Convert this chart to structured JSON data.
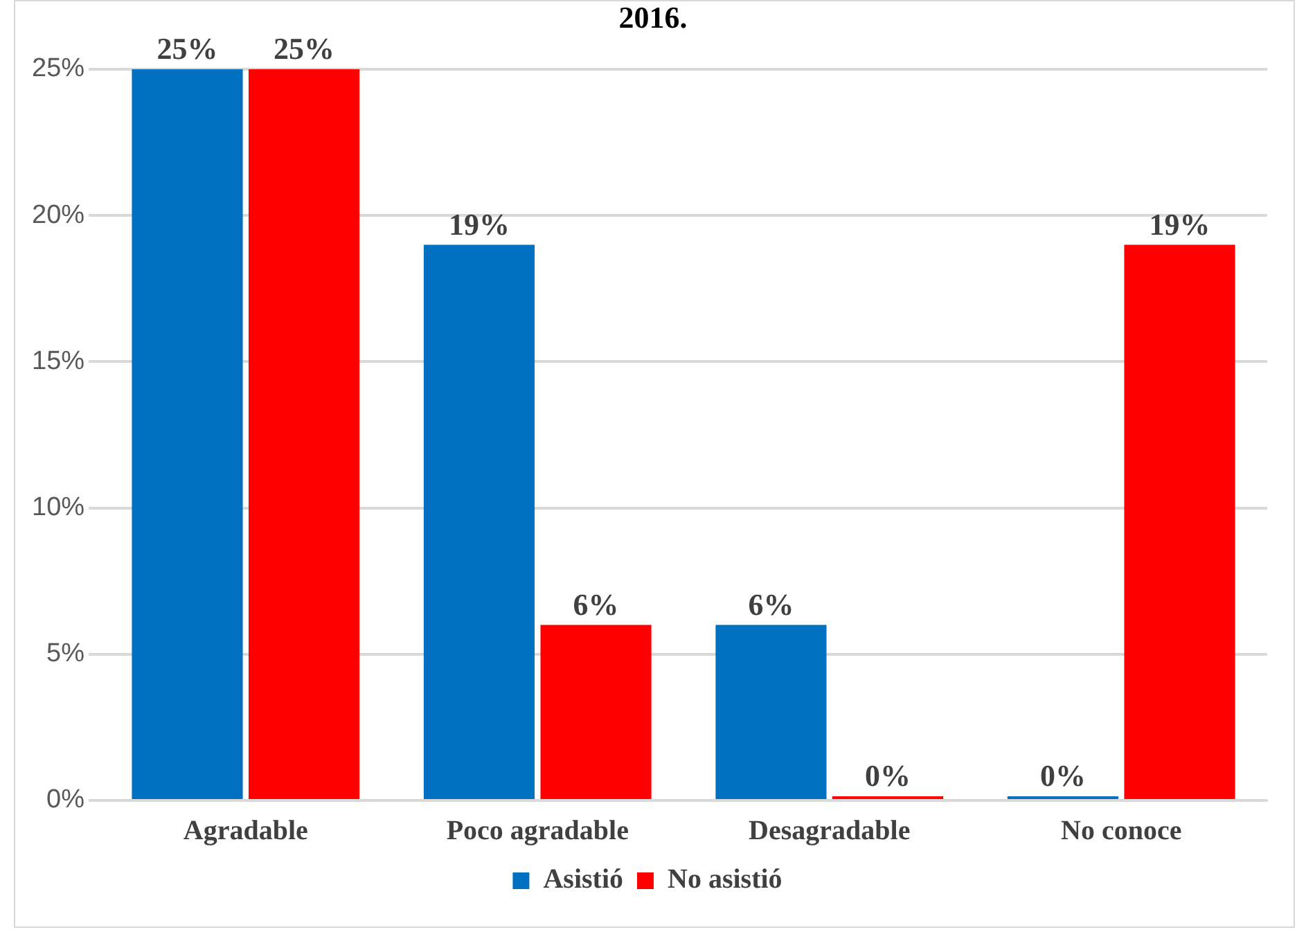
{
  "chart_data": {
    "type": "bar",
    "title": "2016.",
    "categories": [
      "Agradable",
      "Poco agradable",
      "Desagradable",
      "No conoce"
    ],
    "series": [
      {
        "name": "Asistió",
        "color": "#0070c0",
        "values": [
          25,
          19,
          6,
          0
        ],
        "value_labels": [
          "25%",
          "19%",
          "6%",
          "0%"
        ]
      },
      {
        "name": "No asistió",
        "color": "#ff0000",
        "values": [
          25,
          6,
          0,
          19
        ],
        "value_labels": [
          "25%",
          "6%",
          "0%",
          "19%"
        ]
      }
    ],
    "ylim": [
      0,
      25
    ],
    "yticks": [
      {
        "value": 0,
        "label": "0%"
      },
      {
        "value": 5,
        "label": "5%"
      },
      {
        "value": 10,
        "label": "10%"
      },
      {
        "value": 15,
        "label": "15%"
      },
      {
        "value": 20,
        "label": "20%"
      },
      {
        "value": 25,
        "label": "25%"
      }
    ],
    "grid": "y",
    "legend": "bottom"
  }
}
